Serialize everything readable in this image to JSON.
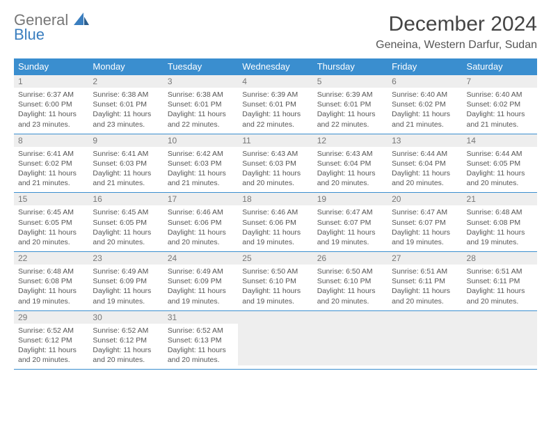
{
  "brand": {
    "line1": "General",
    "line2": "Blue"
  },
  "title": "December 2024",
  "location": "Geneina, Western Darfur, Sudan",
  "colors": {
    "header_bg": "#3a8ecf",
    "header_text": "#ffffff",
    "daynum_bg": "#eeeeee",
    "daynum_text": "#777777",
    "border": "#3a8ecf",
    "body_text": "#555555",
    "logo_gray": "#777777",
    "logo_blue": "#3a7ebf"
  },
  "weekdays": [
    "Sunday",
    "Monday",
    "Tuesday",
    "Wednesday",
    "Thursday",
    "Friday",
    "Saturday"
  ],
  "weeks": [
    [
      {
        "n": "1",
        "sr": "6:37 AM",
        "ss": "6:00 PM",
        "dl": "11 hours and 23 minutes."
      },
      {
        "n": "2",
        "sr": "6:38 AM",
        "ss": "6:01 PM",
        "dl": "11 hours and 23 minutes."
      },
      {
        "n": "3",
        "sr": "6:38 AM",
        "ss": "6:01 PM",
        "dl": "11 hours and 22 minutes."
      },
      {
        "n": "4",
        "sr": "6:39 AM",
        "ss": "6:01 PM",
        "dl": "11 hours and 22 minutes."
      },
      {
        "n": "5",
        "sr": "6:39 AM",
        "ss": "6:01 PM",
        "dl": "11 hours and 22 minutes."
      },
      {
        "n": "6",
        "sr": "6:40 AM",
        "ss": "6:02 PM",
        "dl": "11 hours and 21 minutes."
      },
      {
        "n": "7",
        "sr": "6:40 AM",
        "ss": "6:02 PM",
        "dl": "11 hours and 21 minutes."
      }
    ],
    [
      {
        "n": "8",
        "sr": "6:41 AM",
        "ss": "6:02 PM",
        "dl": "11 hours and 21 minutes."
      },
      {
        "n": "9",
        "sr": "6:41 AM",
        "ss": "6:03 PM",
        "dl": "11 hours and 21 minutes."
      },
      {
        "n": "10",
        "sr": "6:42 AM",
        "ss": "6:03 PM",
        "dl": "11 hours and 21 minutes."
      },
      {
        "n": "11",
        "sr": "6:43 AM",
        "ss": "6:03 PM",
        "dl": "11 hours and 20 minutes."
      },
      {
        "n": "12",
        "sr": "6:43 AM",
        "ss": "6:04 PM",
        "dl": "11 hours and 20 minutes."
      },
      {
        "n": "13",
        "sr": "6:44 AM",
        "ss": "6:04 PM",
        "dl": "11 hours and 20 minutes."
      },
      {
        "n": "14",
        "sr": "6:44 AM",
        "ss": "6:05 PM",
        "dl": "11 hours and 20 minutes."
      }
    ],
    [
      {
        "n": "15",
        "sr": "6:45 AM",
        "ss": "6:05 PM",
        "dl": "11 hours and 20 minutes."
      },
      {
        "n": "16",
        "sr": "6:45 AM",
        "ss": "6:05 PM",
        "dl": "11 hours and 20 minutes."
      },
      {
        "n": "17",
        "sr": "6:46 AM",
        "ss": "6:06 PM",
        "dl": "11 hours and 20 minutes."
      },
      {
        "n": "18",
        "sr": "6:46 AM",
        "ss": "6:06 PM",
        "dl": "11 hours and 19 minutes."
      },
      {
        "n": "19",
        "sr": "6:47 AM",
        "ss": "6:07 PM",
        "dl": "11 hours and 19 minutes."
      },
      {
        "n": "20",
        "sr": "6:47 AM",
        "ss": "6:07 PM",
        "dl": "11 hours and 19 minutes."
      },
      {
        "n": "21",
        "sr": "6:48 AM",
        "ss": "6:08 PM",
        "dl": "11 hours and 19 minutes."
      }
    ],
    [
      {
        "n": "22",
        "sr": "6:48 AM",
        "ss": "6:08 PM",
        "dl": "11 hours and 19 minutes."
      },
      {
        "n": "23",
        "sr": "6:49 AM",
        "ss": "6:09 PM",
        "dl": "11 hours and 19 minutes."
      },
      {
        "n": "24",
        "sr": "6:49 AM",
        "ss": "6:09 PM",
        "dl": "11 hours and 19 minutes."
      },
      {
        "n": "25",
        "sr": "6:50 AM",
        "ss": "6:10 PM",
        "dl": "11 hours and 19 minutes."
      },
      {
        "n": "26",
        "sr": "6:50 AM",
        "ss": "6:10 PM",
        "dl": "11 hours and 20 minutes."
      },
      {
        "n": "27",
        "sr": "6:51 AM",
        "ss": "6:11 PM",
        "dl": "11 hours and 20 minutes."
      },
      {
        "n": "28",
        "sr": "6:51 AM",
        "ss": "6:11 PM",
        "dl": "11 hours and 20 minutes."
      }
    ],
    [
      {
        "n": "29",
        "sr": "6:52 AM",
        "ss": "6:12 PM",
        "dl": "11 hours and 20 minutes."
      },
      {
        "n": "30",
        "sr": "6:52 AM",
        "ss": "6:12 PM",
        "dl": "11 hours and 20 minutes."
      },
      {
        "n": "31",
        "sr": "6:52 AM",
        "ss": "6:13 PM",
        "dl": "11 hours and 20 minutes."
      },
      null,
      null,
      null,
      null
    ]
  ]
}
